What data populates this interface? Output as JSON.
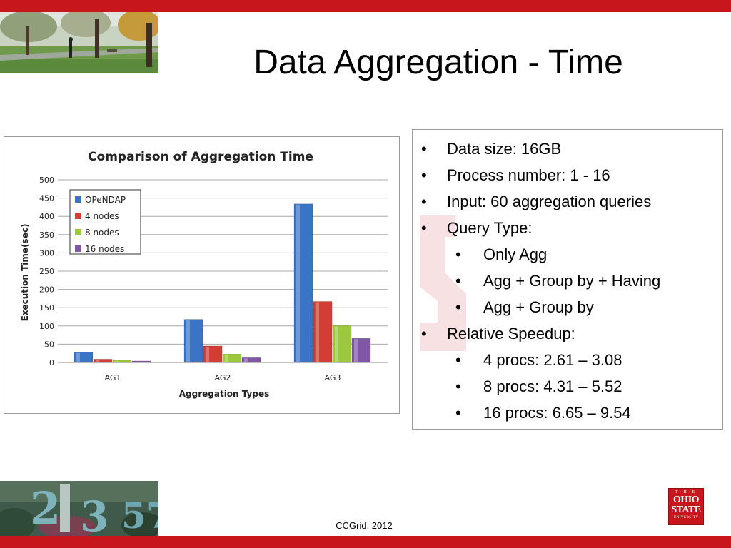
{
  "slide": {
    "title": "Data Aggregation - Time",
    "footer": "CCGrid, 2012"
  },
  "logo": {
    "the": "T·H·E",
    "line1": "OHIO",
    "line2": "STATE",
    "line3": "UNIVERSITY"
  },
  "bullets": [
    {
      "level": 1,
      "text": "Data size: 16GB"
    },
    {
      "level": 1,
      "text": "Process number: 1 - 16"
    },
    {
      "level": 1,
      "text": "Input: 60 aggregation queries"
    },
    {
      "level": 1,
      "text": "Query Type:"
    },
    {
      "level": 2,
      "text": "Only Agg"
    },
    {
      "level": 2,
      "text": "Agg + Group by + Having"
    },
    {
      "level": 2,
      "text": "Agg + Group by"
    },
    {
      "level": 1,
      "text": "Relative  Speedup:"
    },
    {
      "level": 2,
      "text": "4 procs:  2.61 – 3.08"
    },
    {
      "level": 2,
      "text": "8 procs:  4.31 – 5.52"
    },
    {
      "level": 2,
      "text": "16 procs: 6.65 – 9.54"
    }
  ],
  "chart_data": {
    "type": "bar",
    "title": "Comparison  of  Aggregation Time",
    "xlabel": "Aggregation Types",
    "ylabel": "Execution Time(sec)",
    "categories": [
      "AG1",
      "AG2",
      "AG3"
    ],
    "ylim": [
      0,
      500
    ],
    "yticks": [
      0,
      50,
      100,
      150,
      200,
      250,
      300,
      350,
      400,
      450,
      500
    ],
    "grid": true,
    "legend_position": "top-left",
    "series": [
      {
        "name": "OPeNDAP",
        "color": "#3b74c4",
        "values": [
          28,
          118,
          434
        ]
      },
      {
        "name": "4 nodes",
        "color": "#d43c36",
        "values": [
          9,
          45,
          167
        ]
      },
      {
        "name": "8 nodes",
        "color": "#9cc83b",
        "values": [
          6,
          23,
          101
        ]
      },
      {
        "name": "16 nodes",
        "color": "#7f57a6",
        "values": [
          4,
          13,
          66
        ]
      }
    ]
  }
}
